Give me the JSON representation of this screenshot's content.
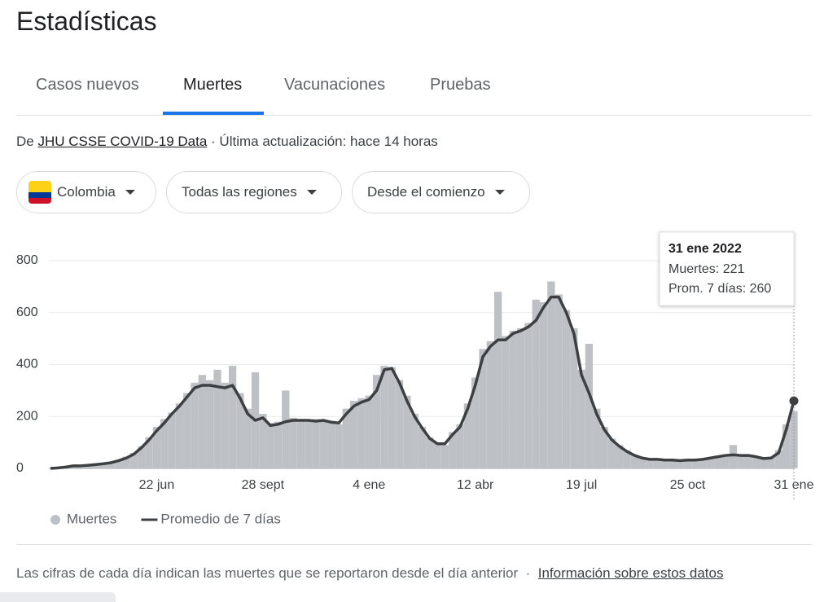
{
  "header": {
    "title": "Estadísticas"
  },
  "tabs": [
    "Casos nuevos",
    "Muertes",
    "Vacunaciones",
    "Pruebas"
  ],
  "source": {
    "prefix": "De",
    "link": "JHU CSSE COVID-19 Data",
    "suffix": "· Última actualización: hace 14 horas"
  },
  "filters": [
    "Colombia",
    "Todas las regiones",
    "Desde el comienzo"
  ],
  "chart_data": {
    "type": "bar",
    "categories": [
      null,
      null,
      null,
      null,
      null,
      null,
      null,
      null,
      null,
      null,
      null,
      null,
      null,
      null,
      "22 jun",
      null,
      null,
      null,
      null,
      null,
      null,
      null,
      null,
      null,
      null,
      null,
      null,
      null,
      "28 sept",
      null,
      null,
      null,
      null,
      null,
      null,
      null,
      null,
      null,
      null,
      null,
      null,
      null,
      "4 ene",
      null,
      null,
      null,
      null,
      null,
      null,
      null,
      null,
      null,
      null,
      null,
      null,
      null,
      "12 abr",
      null,
      null,
      null,
      null,
      null,
      null,
      null,
      null,
      null,
      null,
      null,
      null,
      null,
      "19 jul",
      null,
      null,
      null,
      null,
      null,
      null,
      null,
      null,
      null,
      null,
      null,
      null,
      null,
      "25 oct",
      null,
      null,
      null,
      null,
      null,
      null,
      null,
      null,
      null,
      null,
      null,
      null,
      null,
      "31 ene"
    ],
    "series": [
      {
        "name": "Muertes",
        "type": "bar",
        "color": "#bdc1c6",
        "values": [
          0,
          3,
          6,
          9,
          12,
          11,
          16,
          20,
          25,
          33,
          45,
          60,
          85,
          120,
          160,
          190,
          215,
          250,
          290,
          330,
          360,
          340,
          380,
          330,
          395,
          290,
          230,
          370,
          210,
          175,
          180,
          300,
          195,
          190,
          180,
          190,
          185,
          180,
          170,
          230,
          260,
          270,
          280,
          360,
          395,
          390,
          340,
          280,
          210,
          160,
          120,
          100,
          90,
          140,
          170,
          250,
          350,
          460,
          490,
          680,
          510,
          530,
          540,
          560,
          650,
          640,
          720,
          670,
          610,
          540,
          380,
          480,
          230,
          160,
          115,
          90,
          70,
          52,
          42,
          36,
          36,
          33,
          30,
          32,
          34,
          33,
          37,
          42,
          48,
          52,
          90,
          55,
          52,
          46,
          40,
          42,
          70,
          170,
          221
        ]
      },
      {
        "name": "Promedio de 7 días",
        "type": "line",
        "color": "#3c4043",
        "values": [
          0,
          2,
          5,
          10,
          10,
          12,
          15,
          18,
          22,
          30,
          40,
          55,
          80,
          110,
          145,
          175,
          210,
          240,
          275,
          310,
          320,
          320,
          315,
          310,
          320,
          270,
          210,
          185,
          195,
          165,
          170,
          180,
          185,
          185,
          185,
          182,
          185,
          178,
          175,
          210,
          240,
          255,
          265,
          300,
          380,
          385,
          330,
          260,
          200,
          155,
          115,
          95,
          95,
          130,
          160,
          230,
          320,
          430,
          470,
          495,
          495,
          520,
          530,
          545,
          570,
          620,
          660,
          660,
          600,
          520,
          360,
          290,
          210,
          150,
          110,
          85,
          65,
          50,
          40,
          35,
          35,
          32,
          32,
          30,
          32,
          32,
          35,
          40,
          45,
          50,
          52,
          50,
          50,
          45,
          38,
          40,
          60,
          150,
          260
        ]
      }
    ],
    "ylim": [
      0,
      800
    ],
    "yticks": [
      0,
      200,
      400,
      600,
      800
    ],
    "grid": true,
    "tooltip": {
      "title": "31 ene 2022",
      "lines": [
        "Muertes: 221",
        "Prom. 7 días: 260"
      ]
    }
  },
  "footer": {
    "text": "Las cifras de cada día indican las muertes que se reportaron desde el día anterior",
    "separator": "·",
    "link": "Información sobre estos datos"
  }
}
